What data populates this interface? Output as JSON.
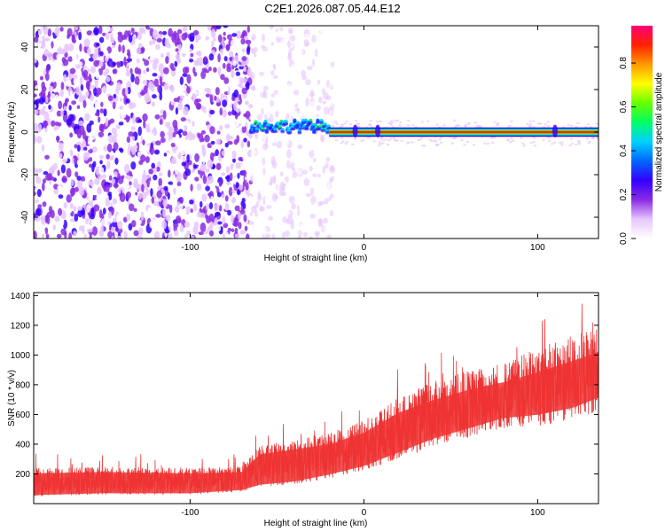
{
  "title": "C2E1.2026.087.05.44.E12",
  "chart_data": [
    {
      "type": "heatmap",
      "title": "C2E1.2026.087.05.44.E12",
      "xlabel": "Height of straight line (km)",
      "ylabel": "Frequency (Hz)",
      "xlim": [
        -190,
        135
      ],
      "ylim": [
        -50,
        50
      ],
      "xticks": [
        -100,
        0,
        100
      ],
      "yticks": [
        -40,
        -20,
        0,
        20,
        40
      ],
      "colorbar": {
        "label": "Normalized spectral amplitude",
        "range": [
          0,
          0.97
        ],
        "ticks": [
          0.0,
          0.2,
          0.4,
          0.6,
          0.8
        ],
        "colors": [
          "#ffffff",
          "#e6c6ff",
          "#8a2be2",
          "#3300ff",
          "#0066ff",
          "#00d0ff",
          "#00ff66",
          "#66ff00",
          "#ffff00",
          "#ff9900",
          "#ff2200",
          "#ff0077"
        ]
      },
      "regions": [
        {
          "description": "noise",
          "x": [
            -190,
            -65
          ],
          "amplitude": 0.18
        },
        {
          "description": "sparse noise",
          "x": [
            -65,
            -18
          ],
          "amplitude": 0.08
        },
        {
          "description": "tonal line onset",
          "x": [
            -65,
            -20
          ],
          "frequency": 3,
          "amplitude": 0.35
        },
        {
          "description": "tonal line",
          "x": [
            -20,
            135
          ],
          "frequency": 0.5,
          "amplitude": 0.9
        }
      ]
    },
    {
      "type": "line",
      "xlabel": "Height of straight line (km)",
      "ylabel": "SNR (10 * v/v)",
      "xlim": [
        -190,
        135
      ],
      "ylim": [
        0,
        1420
      ],
      "xticks": [
        -100,
        0,
        100
      ],
      "yticks": [
        200,
        400,
        600,
        800,
        1000,
        1200,
        1400
      ],
      "color": "#ee3333",
      "series": [
        {
          "name": "SNR upper envelope",
          "x": [
            -190,
            -150,
            -100,
            -70,
            -60,
            -40,
            -20,
            0,
            20,
            40,
            60,
            80,
            100,
            120,
            135
          ],
          "y": [
            240,
            250,
            240,
            250,
            390,
            430,
            470,
            560,
            720,
            820,
            900,
            960,
            1040,
            1130,
            1200
          ]
        },
        {
          "name": "SNR lower envelope",
          "x": [
            -190,
            -150,
            -100,
            -70,
            -60,
            -40,
            -20,
            0,
            20,
            40,
            60,
            80,
            100,
            120,
            135
          ],
          "y": [
            50,
            60,
            60,
            80,
            110,
            130,
            170,
            220,
            300,
            380,
            440,
            500,
            520,
            560,
            620
          ]
        }
      ]
    }
  ]
}
